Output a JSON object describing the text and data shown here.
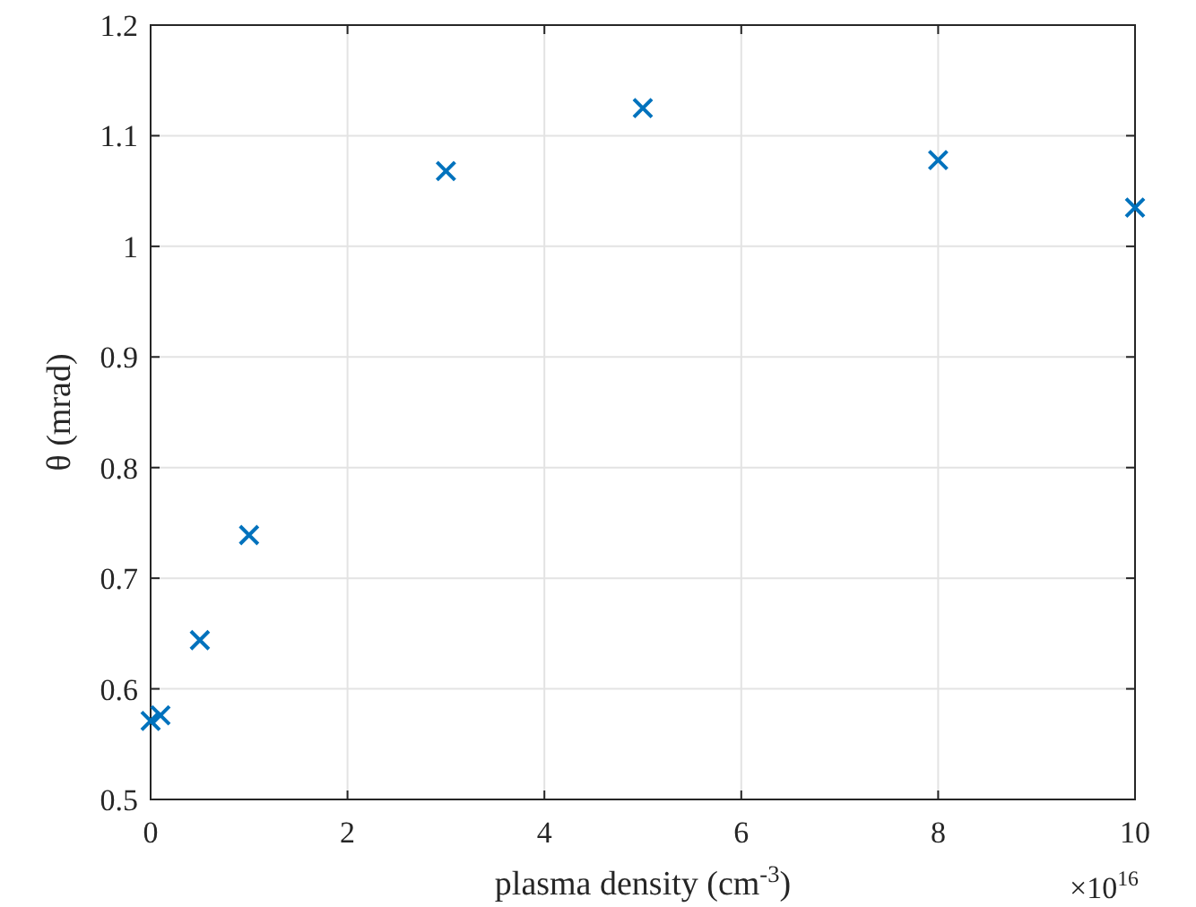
{
  "chart_data": {
    "type": "scatter",
    "xlabel": "plasma density (cm$^{-3}$)",
    "ylabel": "θ (mrad)",
    "x": [
      0,
      0.1,
      0.5,
      1,
      3,
      5,
      8,
      10
    ],
    "series": [
      {
        "color": "#0072bd",
        "values": [
          0.571,
          0.576,
          0.644,
          0.739,
          1.068,
          1.125,
          1.078,
          1.035
        ]
      }
    ],
    "xlim": [
      0,
      10
    ],
    "xticks": [
      0,
      2,
      4,
      6,
      8,
      10
    ],
    "ylim": [
      0.5,
      1.2
    ],
    "yticks": [
      0.5,
      0.6,
      0.7,
      0.8,
      0.9,
      1,
      1.1,
      1.2
    ],
    "grid": true,
    "marker": "cross",
    "annotations": [
      "×10$^{16}$"
    ]
  }
}
